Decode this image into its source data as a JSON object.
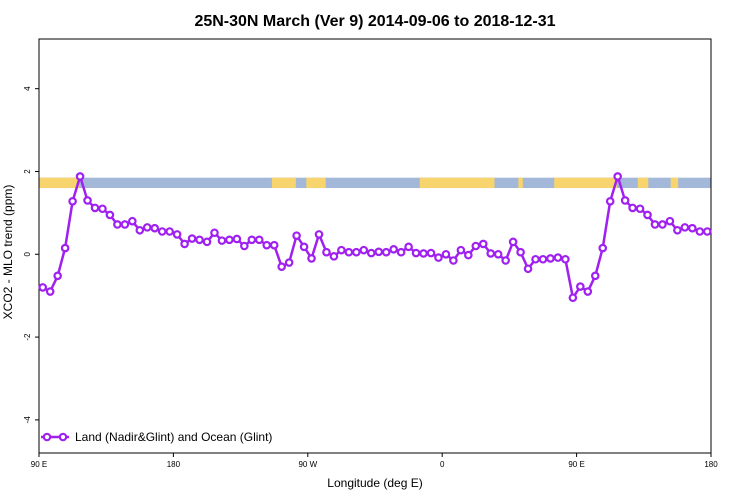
{
  "chart_data": {
    "type": "line",
    "title": "25N-30N March (Ver 9)   2014-09-06 to 2018-12-31",
    "xlabel": "Longitude (deg E)",
    "ylabel": "XCO2 - MLO trend (ppm)",
    "xlim": [
      90,
      540
    ],
    "ylim": [
      -4.8,
      5.2
    ],
    "x_ticks": [
      {
        "value": 90,
        "label": "90 E"
      },
      {
        "value": 180,
        "label": "180"
      },
      {
        "value": 270,
        "label": "90 W"
      },
      {
        "value": 360,
        "label": "0"
      },
      {
        "value": 450,
        "label": "90 E"
      },
      {
        "value": 540,
        "label": "180"
      }
    ],
    "y_ticks": [
      {
        "value": -4,
        "label": "-4"
      },
      {
        "value": -2,
        "label": "-2"
      },
      {
        "value": 0,
        "label": "0"
      },
      {
        "value": 2,
        "label": "2"
      },
      {
        "value": 4,
        "label": "4"
      }
    ],
    "legend": {
      "position": "bottom-left",
      "entries": [
        {
          "name": "Land (Nadir&Glint) and Ocean (Glint)",
          "color": "#a020f0"
        }
      ]
    },
    "land_ocean_band": {
      "y_range": [
        1.6,
        1.85
      ],
      "ocean_color": "#a3b8d9",
      "land_color": "#f7d46e",
      "land_segments": [
        [
          90,
          117
        ],
        [
          246,
          262
        ],
        [
          269,
          282
        ],
        [
          345,
          395
        ],
        [
          411,
          414
        ],
        [
          435,
          477
        ],
        [
          491,
          498
        ],
        [
          513,
          518
        ]
      ]
    },
    "series": [
      {
        "name": "Land (Nadir&Glint) and Ocean (Glint)",
        "color": "#a020f0",
        "x": [
          92.5,
          97.5,
          102.5,
          107.5,
          112.5,
          117.5,
          122.5,
          127.5,
          132.5,
          137.5,
          142.5,
          147.5,
          152.5,
          157.5,
          162.5,
          167.5,
          172.5,
          177.5,
          182.5,
          187.5,
          192.5,
          197.5,
          202.5,
          207.5,
          212.5,
          217.5,
          222.5,
          227.5,
          232.5,
          237.5,
          242.5,
          247.5,
          252.5,
          257.5,
          262.5,
          267.5,
          272.5,
          277.5,
          282.5,
          287.5,
          292.5,
          297.5,
          302.5,
          307.5,
          312.5,
          317.5,
          322.5,
          327.5,
          332.5,
          337.5,
          342.5,
          347.5,
          352.5,
          357.5,
          362.5,
          367.5,
          372.5,
          377.5,
          382.5,
          387.5,
          392.5,
          397.5,
          402.5,
          407.5,
          412.5,
          417.5,
          422.5,
          427.5,
          432.5,
          437.5,
          442.5,
          447.5,
          452.5,
          457.5,
          462.5,
          467.5,
          472.5,
          477.5,
          482.5,
          487.5,
          492.5,
          497.5,
          502.5,
          507.5,
          512.5,
          517.5,
          522.5,
          527.5,
          532.5,
          537.5
        ],
        "values": [
          -0.8,
          -0.9,
          -0.52,
          0.15,
          1.28,
          1.88,
          1.3,
          1.12,
          1.1,
          0.95,
          0.72,
          0.72,
          0.8,
          0.58,
          0.65,
          0.63,
          0.55,
          0.55,
          0.48,
          0.25,
          0.38,
          0.35,
          0.3,
          0.52,
          0.33,
          0.35,
          0.37,
          0.2,
          0.35,
          0.35,
          0.22,
          0.22,
          -0.3,
          -0.2,
          0.45,
          0.18,
          -0.1,
          0.48,
          0.05,
          -0.05,
          0.1,
          0.05,
          0.05,
          0.1,
          0.03,
          0.06,
          0.05,
          0.12,
          0.05,
          0.18,
          0.03,
          0.02,
          0.03,
          -0.08,
          0.0,
          -0.15,
          0.1,
          -0.02,
          0.2,
          0.25,
          0.02,
          0.0,
          -0.15,
          0.3,
          0.05,
          -0.35,
          -0.12,
          -0.12,
          -0.1,
          -0.08,
          -0.12,
          -1.05,
          -0.78,
          -0.9,
          -0.52,
          0.15,
          1.28,
          1.88,
          1.3,
          1.12,
          1.1,
          0.95,
          0.72,
          0.72,
          0.8,
          0.58,
          0.65,
          0.63,
          0.55,
          0.55
        ]
      }
    ]
  }
}
